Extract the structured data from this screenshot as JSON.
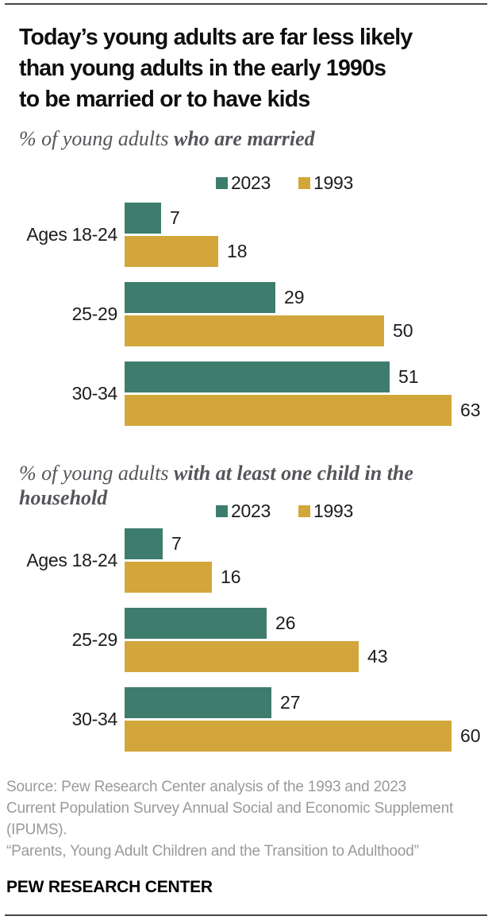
{
  "page": {
    "title_lines": [
      "Today’s young adults are far less likely",
      "than young adults in the early 1990s",
      "to be married or to have kids"
    ]
  },
  "colors": {
    "series_2023": "#3E7D6D",
    "series_1993": "#D2A63A",
    "title_text": "#0F0F0F",
    "subtitle_text": "#54565A",
    "label_text": "#1C1C1C",
    "source_text": "#9A9A9A"
  },
  "chart_data": [
    {
      "type": "bar",
      "orientation": "horizontal",
      "subtitle_prefix": "% of young adults ",
      "subtitle_emphasis": "who are married",
      "categories": [
        "Ages 18-24",
        "25-29",
        "30-34"
      ],
      "series": [
        {
          "name": "2023",
          "color": "#3E7D6D",
          "values": [
            7,
            29,
            51
          ]
        },
        {
          "name": "1993",
          "color": "#D2A63A",
          "values": [
            18,
            50,
            63
          ]
        }
      ],
      "xlim": [
        0,
        63
      ],
      "value_labels": true,
      "grid": false,
      "legend_position": "top"
    },
    {
      "type": "bar",
      "orientation": "horizontal",
      "subtitle_prefix": "% of young adults ",
      "subtitle_emphasis": "with at least one child in the household",
      "categories": [
        "Ages 18-24",
        "25-29",
        "30-34"
      ],
      "series": [
        {
          "name": "2023",
          "color": "#3E7D6D",
          "values": [
            7,
            26,
            27
          ]
        },
        {
          "name": "1993",
          "color": "#D2A63A",
          "values": [
            16,
            43,
            60
          ]
        }
      ],
      "xlim": [
        0,
        60
      ],
      "value_labels": true,
      "grid": false,
      "legend_position": "top"
    }
  ],
  "footer": {
    "source_lines": [
      "Source: Pew Research Center analysis of the 1993 and 2023",
      "Current Population Survey Annual Social and Economic Supplement",
      "(IPUMS)."
    ],
    "report_title": "“Parents, Young Adult Children and the Transition to Adulthood”",
    "brand": "PEW RESEARCH CENTER"
  }
}
